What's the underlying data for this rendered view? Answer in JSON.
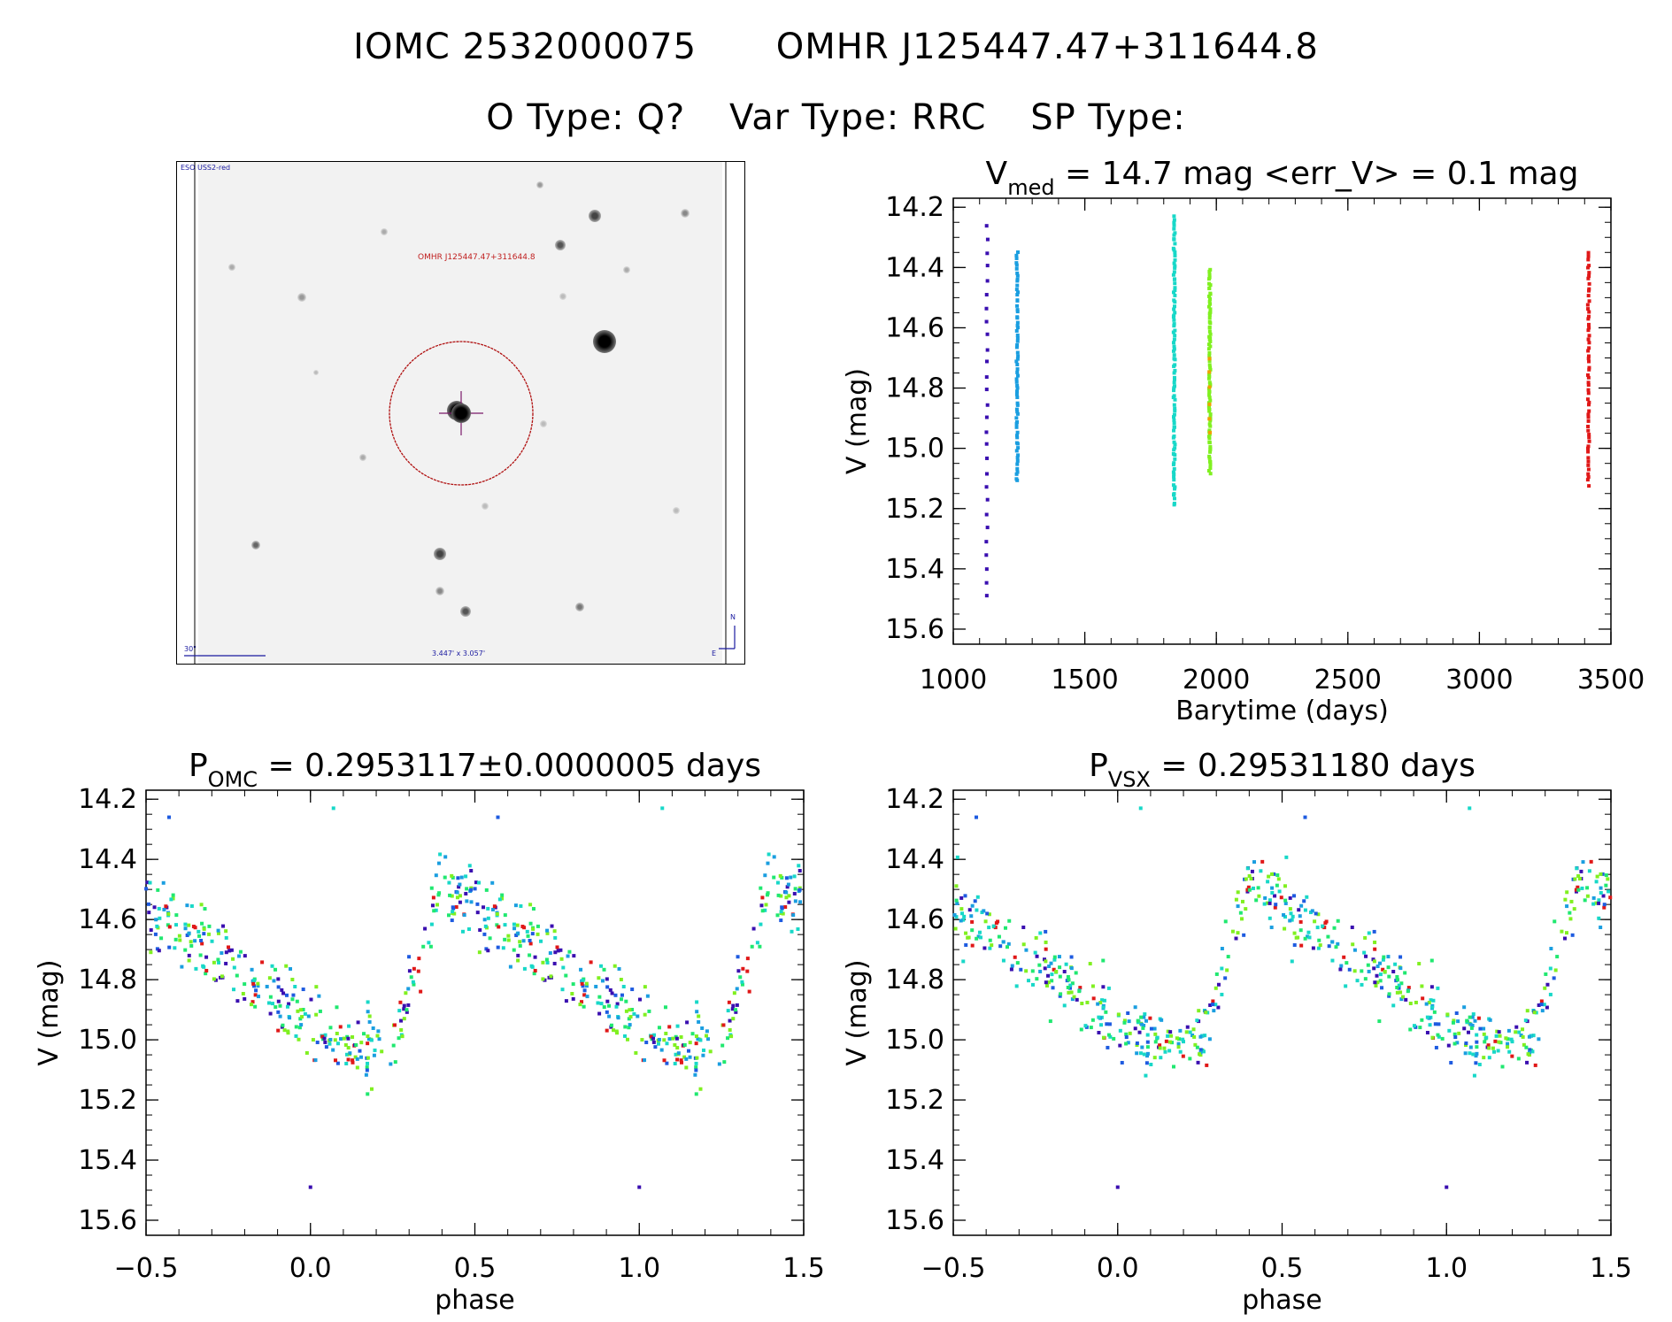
{
  "header": {
    "title_line1": [
      "IOMC 2532000075",
      "OMHR J125447.47+311644.8"
    ],
    "title_line2": [
      "O Type: Q?",
      "Var Type: RRC",
      "SP Type:"
    ]
  },
  "finder": {
    "survey_label": "ESO USS2-red",
    "target_label": "OMHR J125447.47+311644.8",
    "scale_label": "30\"",
    "size_label": "3.447' x 3.057'",
    "north_label": "N",
    "east_label": "E"
  },
  "colors": {
    "palette": [
      "#3a0fb0",
      "#1e5be0",
      "#1a9ee0",
      "#18d8c8",
      "#20e870",
      "#80f020",
      "#f0a000",
      "#e01818"
    ]
  },
  "chart_data": [
    {
      "id": "lightcurve",
      "type": "scatter",
      "title_parts": [
        "V",
        "med",
        " = 14.7 mag <err_V> = 0.1 mag"
      ],
      "xlabel": "Barytime (days)",
      "ylabel": "V (mag)",
      "xlim": [
        1000,
        3500
      ],
      "ylim": [
        15.65,
        14.17
      ],
      "xticks": [
        "1000",
        "1500",
        "2000",
        "2500",
        "3000",
        "3500"
      ],
      "yticks": [
        "14.2",
        "14.4",
        "14.6",
        "14.8",
        "15.0",
        "15.2",
        "15.4",
        "15.6"
      ],
      "seasons": [
        {
          "x": 1128,
          "ymin": 14.26,
          "ymax": 15.49,
          "color": "#3a0fb0",
          "n": 28
        },
        {
          "x": 1243,
          "ymin": 14.35,
          "ymax": 15.11,
          "color": "#1a9ee0",
          "n": 70
        },
        {
          "x": 1840,
          "ymin": 14.23,
          "ymax": 15.19,
          "color": "#18d8c8",
          "n": 95
        },
        {
          "x": 1975,
          "ymin": 14.41,
          "ymax": 15.08,
          "color": "#80f020",
          "n": 85
        },
        {
          "x": 1975,
          "ymin": 14.7,
          "ymax": 14.95,
          "color": "#f0a000",
          "n": 6
        },
        {
          "x": 3415,
          "ymin": 14.35,
          "ymax": 15.12,
          "color": "#e01818",
          "n": 60
        }
      ]
    },
    {
      "id": "phase_omc",
      "type": "scatter",
      "title_parts": [
        "P",
        "OMC",
        " = 0.2953117±0.0000005 days"
      ],
      "xlabel": "phase",
      "ylabel": "V (mag)",
      "xlim": [
        -0.5,
        1.5
      ],
      "ylim": [
        15.65,
        14.17
      ],
      "xticks": [
        "-0.5",
        "0.0",
        "0.5",
        "1.0",
        "1.5"
      ],
      "yticks": [
        "14.2",
        "14.4",
        "14.6",
        "14.8",
        "15.0",
        "15.2",
        "15.4",
        "15.6"
      ],
      "model": {
        "min_phase": 0.08,
        "rise_start": 0.26,
        "rise_end": 0.4,
        "bright": 14.47,
        "faint": 15.0
      },
      "n_points": 330
    },
    {
      "id": "phase_vsx",
      "type": "scatter",
      "title_parts": [
        "P",
        "VSX",
        " = 0.29531180 days"
      ],
      "xlabel": "phase",
      "ylabel": "V (mag)",
      "xlim": [
        -0.5,
        1.5
      ],
      "ylim": [
        15.65,
        14.17
      ],
      "xticks": [
        "-0.5",
        "0.0",
        "0.5",
        "1.0",
        "1.5"
      ],
      "yticks": [
        "14.2",
        "14.4",
        "14.6",
        "14.8",
        "15.0",
        "15.2",
        "15.4",
        "15.6"
      ],
      "model": {
        "min_phase": 0.08,
        "rise_start": 0.26,
        "rise_end": 0.4,
        "bright": 14.47,
        "faint": 15.0
      },
      "n_points": 330
    }
  ]
}
